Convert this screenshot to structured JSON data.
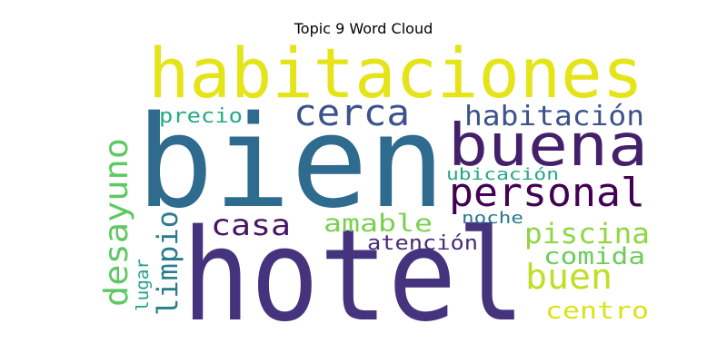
{
  "title": "Topic 9 Word Cloud",
  "words": [
    {
      "text": "bien",
      "color": "#2f6b8e"
    },
    {
      "text": "hotel",
      "color": "#46337e"
    },
    {
      "text": "habitaciones",
      "color": "#e4e419"
    },
    {
      "text": "buena",
      "color": "#44206b"
    },
    {
      "text": "personal",
      "color": "#440154"
    },
    {
      "text": "cerca",
      "color": "#3b528b"
    },
    {
      "text": "habitación",
      "color": "#3b528b"
    },
    {
      "text": "desayuno",
      "color": "#5ec962"
    },
    {
      "text": "piscina",
      "color": "#8fd744"
    },
    {
      "text": "casa",
      "color": "#481467"
    },
    {
      "text": "amable",
      "color": "#7ad151"
    },
    {
      "text": "limpio",
      "color": "#287c8e"
    },
    {
      "text": "buen",
      "color": "#bddf26"
    },
    {
      "text": "comida",
      "color": "#6ccd5a"
    },
    {
      "text": "precio",
      "color": "#25ab82"
    },
    {
      "text": "ubicación",
      "color": "#22a884"
    },
    {
      "text": "noche",
      "color": "#2a788e"
    },
    {
      "text": "atención",
      "color": "#472c7a"
    },
    {
      "text": "lugar",
      "color": "#1fa187"
    },
    {
      "text": "centro",
      "color": "#dae319"
    }
  ]
}
